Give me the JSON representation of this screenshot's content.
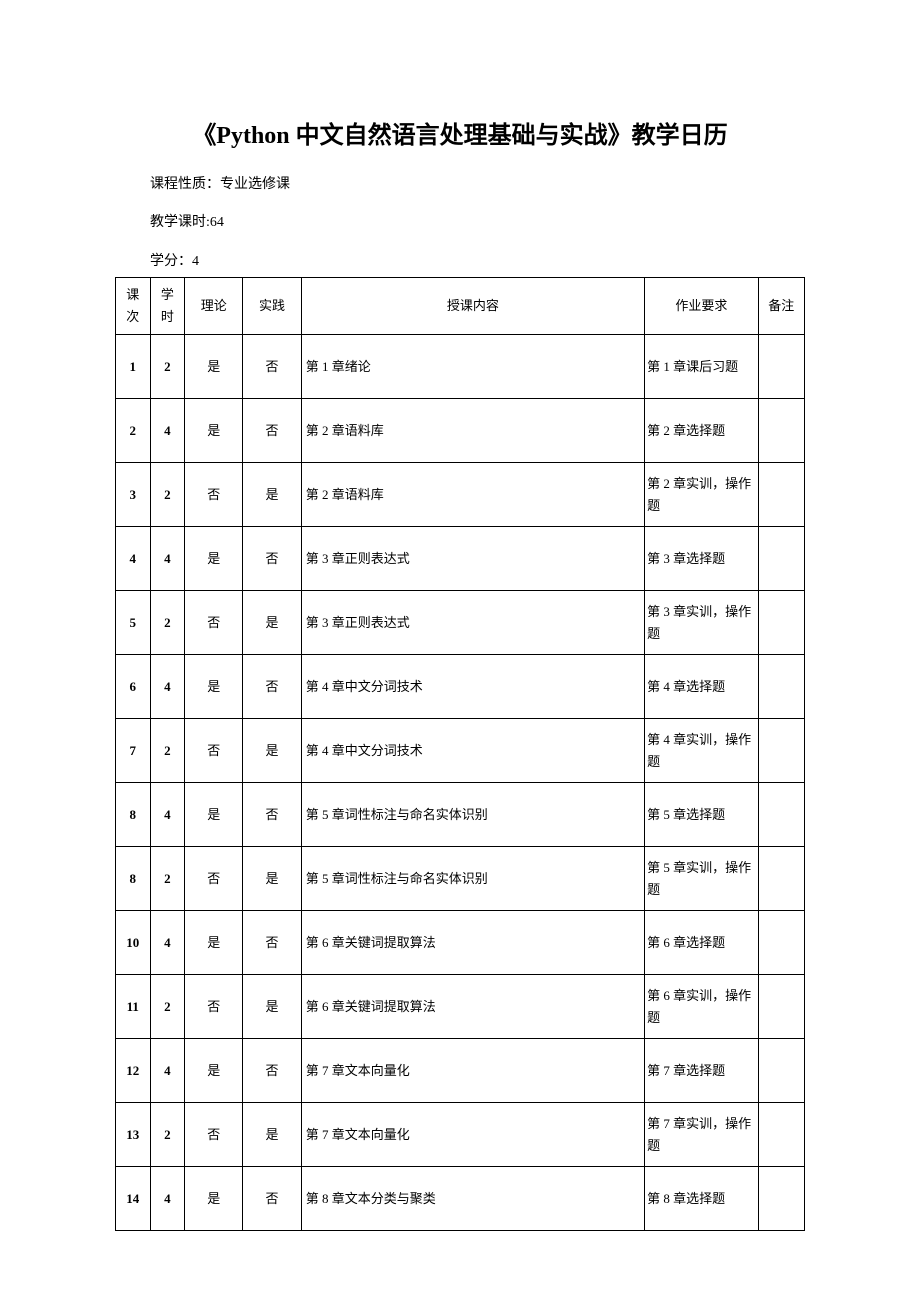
{
  "title": "《Python 中文自然语言处理基础与实战》教学日历",
  "meta": {
    "course_type_label": "课程性质：",
    "course_type_value": "专业选修课",
    "hours_label": "教学课时:",
    "hours_value": "64",
    "credits_label": "学分：",
    "credits_value": "4"
  },
  "columns": {
    "session": "课次",
    "hours": "学时",
    "theory": "理论",
    "practice": "实践",
    "content": "授课内容",
    "homework": "作业要求",
    "notes": "备注"
  },
  "rows": [
    {
      "session": "1",
      "hours": "2",
      "theory": "是",
      "practice": "否",
      "content": "第 1 章绪论",
      "homework": "第 1 章课后习题",
      "notes": ""
    },
    {
      "session": "2",
      "hours": "4",
      "theory": "是",
      "practice": "否",
      "content": "第 2 章语料库",
      "homework": "第 2 章选择题",
      "notes": ""
    },
    {
      "session": "3",
      "hours": "2",
      "theory": "否",
      "practice": "是",
      "content": "第 2 章语料库",
      "homework": "第 2 章实训，操作题",
      "notes": ""
    },
    {
      "session": "4",
      "hours": "4",
      "theory": "是",
      "practice": "否",
      "content": "第 3 章正则表达式",
      "homework": "第 3 章选择题",
      "notes": ""
    },
    {
      "session": "5",
      "hours": "2",
      "theory": "否",
      "practice": "是",
      "content": "第 3 章正则表达式",
      "homework": "第 3 章实训，操作题",
      "notes": ""
    },
    {
      "session": "6",
      "hours": "4",
      "theory": "是",
      "practice": "否",
      "content": "第 4 章中文分词技术",
      "homework": "第 4 章选择题",
      "notes": ""
    },
    {
      "session": "7",
      "hours": "2",
      "theory": "否",
      "practice": "是",
      "content": "第 4 章中文分词技术",
      "homework": "第 4 章实训，操作题",
      "notes": ""
    },
    {
      "session": "8",
      "hours": "4",
      "theory": "是",
      "practice": "否",
      "content": "第 5 章词性标注与命名实体识别",
      "homework": "第 5 章选择题",
      "notes": ""
    },
    {
      "session": "8",
      "hours": "2",
      "theory": "否",
      "practice": "是",
      "content": "第 5 章词性标注与命名实体识别",
      "homework": "第 5 章实训，操作题",
      "notes": ""
    },
    {
      "session": "10",
      "hours": "4",
      "theory": "是",
      "practice": "否",
      "content": "第 6 章关键词提取算法",
      "homework": "第 6 章选择题",
      "notes": ""
    },
    {
      "session": "11",
      "hours": "2",
      "theory": "否",
      "practice": "是",
      "content": "第 6 章关键词提取算法",
      "homework": "第 6 章实训，操作题",
      "notes": ""
    },
    {
      "session": "12",
      "hours": "4",
      "theory": "是",
      "practice": "否",
      "content": "第 7 章文本向量化",
      "homework": "第 7 章选择题",
      "notes": ""
    },
    {
      "session": "13",
      "hours": "2",
      "theory": "否",
      "practice": "是",
      "content": "第 7 章文本向量化",
      "homework": "第 7 章实训，操作题",
      "notes": ""
    },
    {
      "session": "14",
      "hours": "4",
      "theory": "是",
      "practice": "否",
      "content": "第 8 章文本分类与聚类",
      "homework": "第 8 章选择题",
      "notes": ""
    }
  ]
}
